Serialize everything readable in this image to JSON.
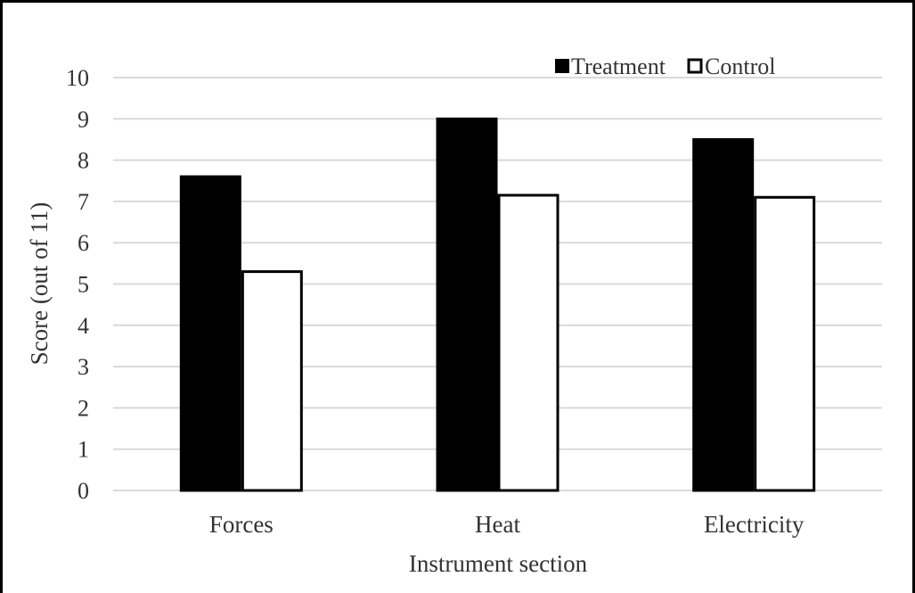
{
  "chart_data": {
    "type": "bar",
    "title": "",
    "xlabel": "Instrument section",
    "ylabel": "Score (out of 11)",
    "categories": [
      "Forces",
      "Heat",
      "Electricity"
    ],
    "series": [
      {
        "name": "Treatment",
        "values": [
          7.6,
          9.0,
          8.5
        ],
        "fill": "#000000"
      },
      {
        "name": "Control",
        "values": [
          5.3,
          7.15,
          7.1
        ],
        "fill": "#ffffff"
      }
    ],
    "ylim": [
      0,
      10
    ],
    "yticks": [
      "0",
      "1",
      "2",
      "3",
      "4",
      "5",
      "6",
      "7",
      "8",
      "9",
      "10"
    ],
    "grid": true,
    "legend_position": "top-right",
    "colors": {
      "grid": "#d9d9d9",
      "axis_text": "#333333",
      "bar_outline": "#000000"
    }
  }
}
